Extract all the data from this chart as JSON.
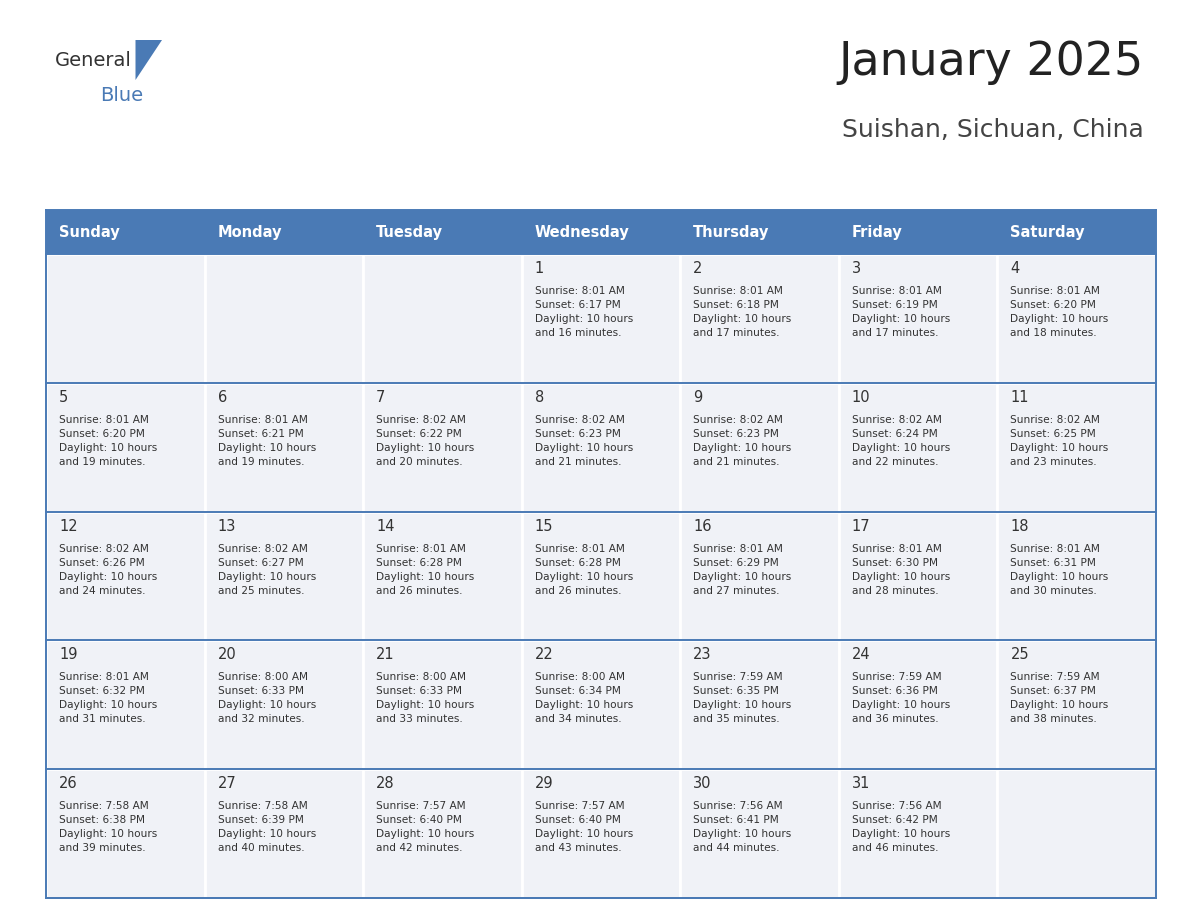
{
  "title": "January 2025",
  "location": "Suishan, Sichuan, China",
  "header_bg": "#4a7ab5",
  "header_text_color": "#ffffff",
  "cell_bg": "#f0f2f7",
  "text_color": "#333333",
  "border_color": "#4a7ab5",
  "days_of_week": [
    "Sunday",
    "Monday",
    "Tuesday",
    "Wednesday",
    "Thursday",
    "Friday",
    "Saturday"
  ],
  "calendar": [
    [
      {
        "day": "",
        "info": ""
      },
      {
        "day": "",
        "info": ""
      },
      {
        "day": "",
        "info": ""
      },
      {
        "day": "1",
        "info": "Sunrise: 8:01 AM\nSunset: 6:17 PM\nDaylight: 10 hours\nand 16 minutes."
      },
      {
        "day": "2",
        "info": "Sunrise: 8:01 AM\nSunset: 6:18 PM\nDaylight: 10 hours\nand 17 minutes."
      },
      {
        "day": "3",
        "info": "Sunrise: 8:01 AM\nSunset: 6:19 PM\nDaylight: 10 hours\nand 17 minutes."
      },
      {
        "day": "4",
        "info": "Sunrise: 8:01 AM\nSunset: 6:20 PM\nDaylight: 10 hours\nand 18 minutes."
      }
    ],
    [
      {
        "day": "5",
        "info": "Sunrise: 8:01 AM\nSunset: 6:20 PM\nDaylight: 10 hours\nand 19 minutes."
      },
      {
        "day": "6",
        "info": "Sunrise: 8:01 AM\nSunset: 6:21 PM\nDaylight: 10 hours\nand 19 minutes."
      },
      {
        "day": "7",
        "info": "Sunrise: 8:02 AM\nSunset: 6:22 PM\nDaylight: 10 hours\nand 20 minutes."
      },
      {
        "day": "8",
        "info": "Sunrise: 8:02 AM\nSunset: 6:23 PM\nDaylight: 10 hours\nand 21 minutes."
      },
      {
        "day": "9",
        "info": "Sunrise: 8:02 AM\nSunset: 6:23 PM\nDaylight: 10 hours\nand 21 minutes."
      },
      {
        "day": "10",
        "info": "Sunrise: 8:02 AM\nSunset: 6:24 PM\nDaylight: 10 hours\nand 22 minutes."
      },
      {
        "day": "11",
        "info": "Sunrise: 8:02 AM\nSunset: 6:25 PM\nDaylight: 10 hours\nand 23 minutes."
      }
    ],
    [
      {
        "day": "12",
        "info": "Sunrise: 8:02 AM\nSunset: 6:26 PM\nDaylight: 10 hours\nand 24 minutes."
      },
      {
        "day": "13",
        "info": "Sunrise: 8:02 AM\nSunset: 6:27 PM\nDaylight: 10 hours\nand 25 minutes."
      },
      {
        "day": "14",
        "info": "Sunrise: 8:01 AM\nSunset: 6:28 PM\nDaylight: 10 hours\nand 26 minutes."
      },
      {
        "day": "15",
        "info": "Sunrise: 8:01 AM\nSunset: 6:28 PM\nDaylight: 10 hours\nand 26 minutes."
      },
      {
        "day": "16",
        "info": "Sunrise: 8:01 AM\nSunset: 6:29 PM\nDaylight: 10 hours\nand 27 minutes."
      },
      {
        "day": "17",
        "info": "Sunrise: 8:01 AM\nSunset: 6:30 PM\nDaylight: 10 hours\nand 28 minutes."
      },
      {
        "day": "18",
        "info": "Sunrise: 8:01 AM\nSunset: 6:31 PM\nDaylight: 10 hours\nand 30 minutes."
      }
    ],
    [
      {
        "day": "19",
        "info": "Sunrise: 8:01 AM\nSunset: 6:32 PM\nDaylight: 10 hours\nand 31 minutes."
      },
      {
        "day": "20",
        "info": "Sunrise: 8:00 AM\nSunset: 6:33 PM\nDaylight: 10 hours\nand 32 minutes."
      },
      {
        "day": "21",
        "info": "Sunrise: 8:00 AM\nSunset: 6:33 PM\nDaylight: 10 hours\nand 33 minutes."
      },
      {
        "day": "22",
        "info": "Sunrise: 8:00 AM\nSunset: 6:34 PM\nDaylight: 10 hours\nand 34 minutes."
      },
      {
        "day": "23",
        "info": "Sunrise: 7:59 AM\nSunset: 6:35 PM\nDaylight: 10 hours\nand 35 minutes."
      },
      {
        "day": "24",
        "info": "Sunrise: 7:59 AM\nSunset: 6:36 PM\nDaylight: 10 hours\nand 36 minutes."
      },
      {
        "day": "25",
        "info": "Sunrise: 7:59 AM\nSunset: 6:37 PM\nDaylight: 10 hours\nand 38 minutes."
      }
    ],
    [
      {
        "day": "26",
        "info": "Sunrise: 7:58 AM\nSunset: 6:38 PM\nDaylight: 10 hours\nand 39 minutes."
      },
      {
        "day": "27",
        "info": "Sunrise: 7:58 AM\nSunset: 6:39 PM\nDaylight: 10 hours\nand 40 minutes."
      },
      {
        "day": "28",
        "info": "Sunrise: 7:57 AM\nSunset: 6:40 PM\nDaylight: 10 hours\nand 42 minutes."
      },
      {
        "day": "29",
        "info": "Sunrise: 7:57 AM\nSunset: 6:40 PM\nDaylight: 10 hours\nand 43 minutes."
      },
      {
        "day": "30",
        "info": "Sunrise: 7:56 AM\nSunset: 6:41 PM\nDaylight: 10 hours\nand 44 minutes."
      },
      {
        "day": "31",
        "info": "Sunrise: 7:56 AM\nSunset: 6:42 PM\nDaylight: 10 hours\nand 46 minutes."
      },
      {
        "day": "",
        "info": ""
      }
    ]
  ]
}
